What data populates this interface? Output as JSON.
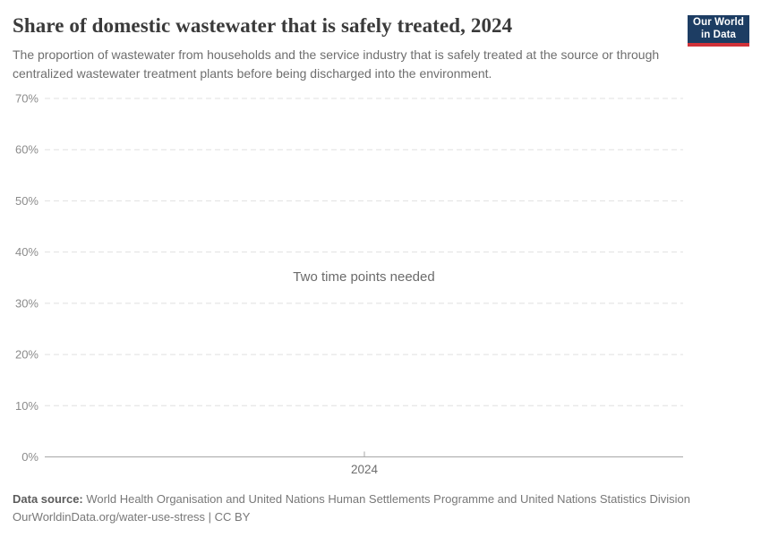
{
  "header": {
    "title": "Share of domestic wastewater that is safely treated, 2024",
    "subtitle": "The proportion of wastewater from households and the service industry that is safely treated at the source or through centralized wastewater treatment plants before being discharged into the environment.",
    "logo": {
      "line1": "Our World",
      "line2": "in Data",
      "bg_color": "#1d3d63",
      "accent_color": "#d13239"
    }
  },
  "chart_data": {
    "type": "line",
    "title": "Share of domestic wastewater that is safely treated, 2024",
    "empty_message": "Two time points needed",
    "series": [],
    "xlabel": "",
    "ylabel": "",
    "ylim": [
      0,
      70
    ],
    "y_ticks": [
      {
        "value": 70,
        "label": "70%"
      },
      {
        "value": 60,
        "label": "60%"
      },
      {
        "value": 50,
        "label": "50%"
      },
      {
        "value": 40,
        "label": "40%"
      },
      {
        "value": 30,
        "label": "30%"
      },
      {
        "value": 20,
        "label": "20%"
      },
      {
        "value": 10,
        "label": "10%"
      },
      {
        "value": 0,
        "label": "0%"
      }
    ],
    "x_tick_labels": [
      "2024"
    ],
    "grid": "horizontal dashed gridlines, solid baseline at 0%",
    "legend_position": "none"
  },
  "colors": {
    "gridline": "#e0e0e0",
    "axis_line": "#a7a7a7",
    "y_tick_label": "#8c8c8c",
    "x_tick_label": "#6e6e6e",
    "title": "#3a3a3a",
    "subtitle": "#6e6e6e"
  },
  "footer": {
    "data_source_label": "Data source:",
    "data_source": "World Health Organisation and United Nations Human Settlements Programme and United Nations Statistics Division",
    "attribution": "OurWorldinData.org/water-use-stress | CC BY"
  }
}
